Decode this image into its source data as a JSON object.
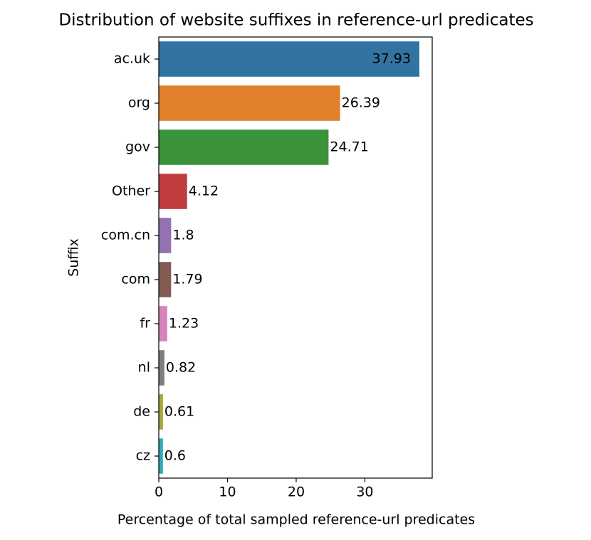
{
  "chart_data": {
    "type": "barh",
    "title": "Distribution of website suffixes in reference-url predicates",
    "xlabel": "Percentage of total sampled reference-url predicates",
    "ylabel": "Suffix",
    "categories": [
      "ac.uk",
      "org",
      "gov",
      "Other",
      "com.cn",
      "com",
      "fr",
      "nl",
      "de",
      "cz"
    ],
    "values": [
      37.93,
      26.39,
      24.71,
      4.12,
      1.8,
      1.79,
      1.23,
      0.82,
      0.61,
      0.6
    ],
    "colors": [
      "#3274a1",
      "#e1812c",
      "#3a923a",
      "#c03d3e",
      "#9372b2",
      "#845b53",
      "#d684bd",
      "#7f7f7f",
      "#a9aa35",
      "#2eabb8"
    ],
    "xlim": [
      0,
      39.8
    ],
    "xticks": [
      0,
      10,
      20,
      30
    ],
    "grid": false
  }
}
